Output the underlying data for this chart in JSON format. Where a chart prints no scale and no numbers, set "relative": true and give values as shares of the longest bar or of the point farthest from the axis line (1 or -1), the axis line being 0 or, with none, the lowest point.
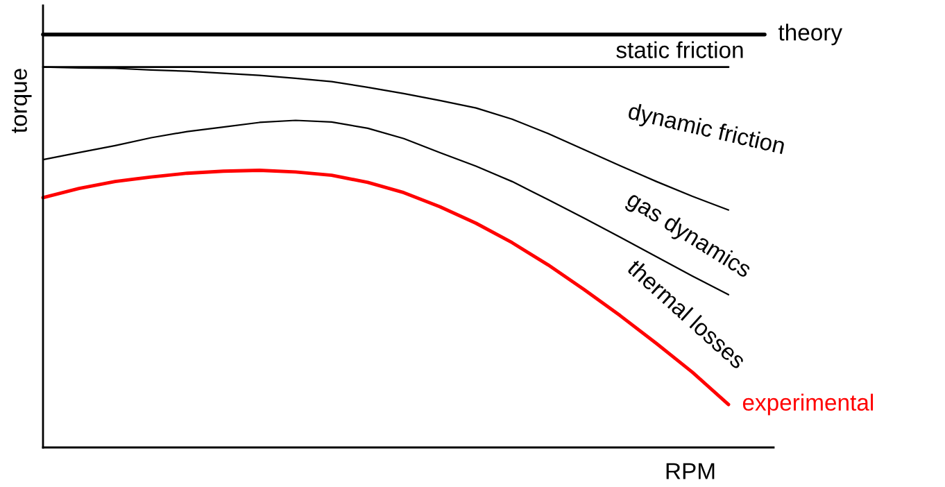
{
  "chart_data": {
    "type": "line",
    "relative": true,
    "xlabel": "RPM",
    "ylabel": "torque",
    "legend": false,
    "marker": "none",
    "line_style": "solid",
    "categories": [
      null,
      null,
      null,
      null,
      null,
      null,
      null,
      null,
      null,
      null,
      null,
      null,
      null,
      null,
      null,
      null,
      null,
      null,
      null,
      null,
      null
    ],
    "series": [
      {
        "name": "theory",
        "color": "#000000",
        "values": [
          1.0,
          1.0,
          1.0,
          1.0,
          1.0,
          1.0,
          1.0,
          1.0,
          1.0,
          1.0,
          1.0,
          1.0,
          1.0,
          1.0,
          1.0,
          1.0,
          1.0,
          1.0,
          1.0,
          1.0,
          1.0
        ]
      },
      {
        "color": "#000000",
        "values": [
          0.921,
          0.921,
          0.921,
          0.921,
          0.921,
          0.921,
          0.921,
          0.921,
          0.921,
          0.921,
          0.921,
          0.921,
          0.921,
          0.921,
          0.921,
          0.921,
          0.921,
          0.921,
          0.921,
          0.921,
          null
        ]
      },
      {
        "color": "#000000",
        "values": [
          0.921,
          0.919,
          0.918,
          0.914,
          0.911,
          0.906,
          0.901,
          0.894,
          0.886,
          0.872,
          0.857,
          0.84,
          0.822,
          0.795,
          0.76,
          0.721,
          0.682,
          0.644,
          0.608,
          0.575,
          null
        ]
      },
      {
        "color": "#000000",
        "values": [
          0.697,
          0.714,
          0.731,
          0.75,
          0.765,
          0.776,
          0.787,
          0.792,
          0.788,
          0.773,
          0.748,
          0.714,
          0.681,
          0.644,
          0.6,
          0.555,
          0.509,
          0.462,
          0.415,
          0.37,
          null
        ]
      },
      {
        "name": "experimental",
        "color": "#ff0000",
        "values": [
          0.605,
          0.627,
          0.644,
          0.655,
          0.664,
          0.669,
          0.671,
          0.667,
          0.659,
          0.642,
          0.617,
          0.583,
          0.543,
          0.496,
          0.442,
          0.382,
          0.319,
          0.252,
          0.182,
          0.104,
          null
        ]
      }
    ],
    "annotations": [
      "static friction",
      "dynamic friction",
      "gas dynamics",
      "thermal losses"
    ]
  }
}
